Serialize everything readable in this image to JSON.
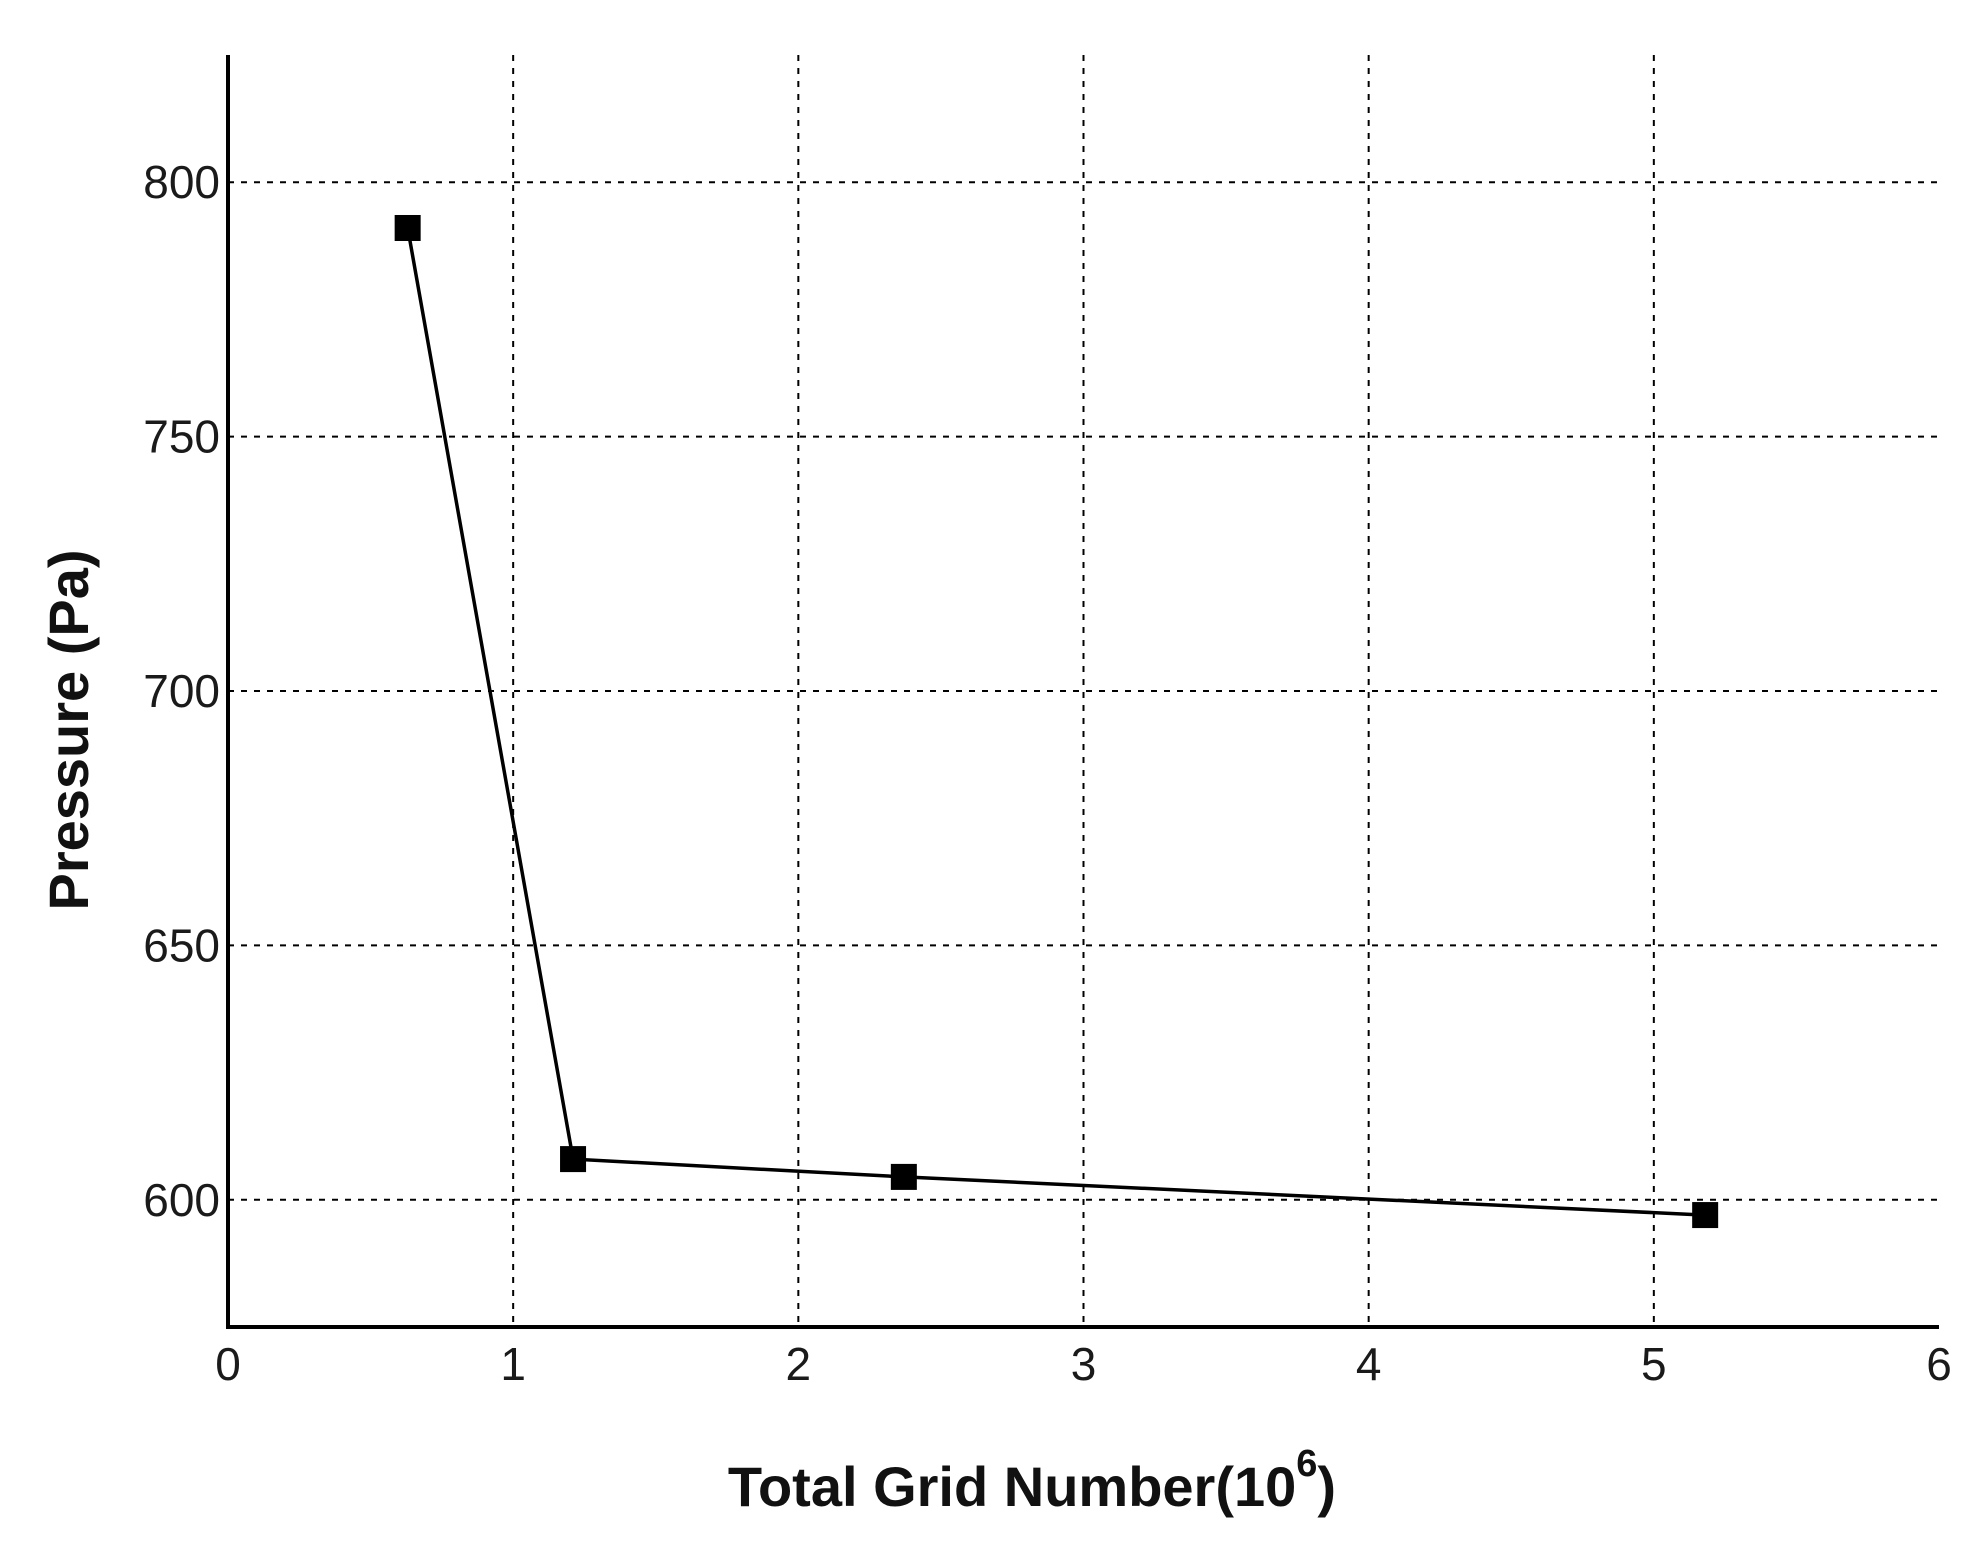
{
  "chart_data": {
    "type": "line",
    "xlabel": "Total Grid Number(10",
    "xlabel_superscript": "6",
    "xlabel_suffix": ")",
    "ylabel": "Pressure (Pa)",
    "xlim": [
      0,
      6
    ],
    "ylim": [
      575,
      825
    ],
    "x_ticks": [
      0,
      1,
      2,
      3,
      4,
      5,
      6
    ],
    "y_ticks": [
      600,
      650,
      700,
      750,
      800
    ],
    "grid": true,
    "series": [
      {
        "x": [
          0.63,
          1.21,
          2.37,
          5.18
        ],
        "y": [
          791,
          608,
          604.5,
          597
        ],
        "color": "#000000",
        "marker": "square"
      }
    ]
  }
}
